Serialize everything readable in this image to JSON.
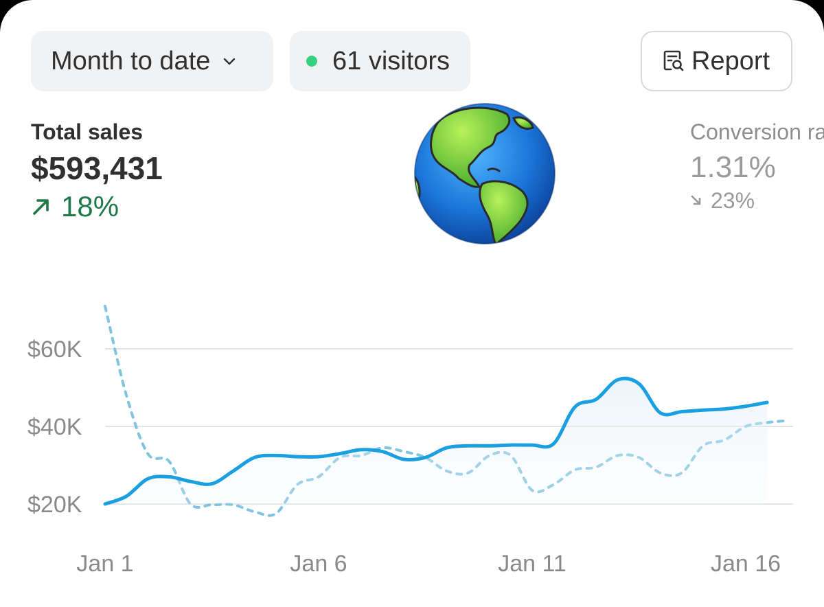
{
  "toolbar": {
    "range_label": "Month to date",
    "visitors_label": "61 visitors",
    "report_label": "Report"
  },
  "icons": {
    "range_dropdown": "chevron-down-icon",
    "live_dot": "live-dot-icon",
    "report": "report-search-icon",
    "up_arrow": "arrow-up-right-icon",
    "down_arrow": "arrow-down-right-icon"
  },
  "colors": {
    "positive": "#1f7a4a",
    "live_dot": "#36d27f",
    "current_series": "#1aa0e0",
    "previous_series": "#7fc4e0"
  },
  "metrics": {
    "total_sales": {
      "label": "Total sales",
      "value": "$593,431",
      "delta": "18%",
      "direction": "up"
    },
    "conversion": {
      "label": "Conversion rate",
      "value": "1.31%",
      "delta": "23%",
      "direction": "down"
    }
  },
  "chart_data": {
    "type": "line",
    "x_ticks": [
      "Jan 1",
      "Jan 6",
      "Jan 11",
      "Jan 16"
    ],
    "y_ticks": [
      "$20K",
      "$40K",
      "$60K"
    ],
    "ylim": [
      16000,
      72000
    ],
    "xlim": [
      1,
      17
    ],
    "grid": true,
    "series": [
      {
        "style": "solid",
        "area": true,
        "x": [
          1,
          1.5,
          2,
          2.5,
          3,
          3.5,
          4,
          4.5,
          5,
          5.5,
          6,
          6.5,
          7,
          7.5,
          8,
          8.5,
          9,
          9.5,
          10,
          10.5,
          11,
          11.5,
          12,
          12.5,
          13,
          13.5,
          14,
          14.5,
          15,
          15.5,
          16,
          16.5
        ],
        "values": [
          20000,
          22000,
          26500,
          27000,
          25800,
          25200,
          28500,
          32000,
          32500,
          32200,
          32200,
          33000,
          34000,
          33500,
          31500,
          32000,
          34500,
          35000,
          35000,
          35200,
          35200,
          35500,
          45000,
          47000,
          52000,
          51000,
          43500,
          43800,
          44200,
          44500,
          45200,
          46200
        ]
      },
      {
        "style": "dashed",
        "area": false,
        "x": [
          1,
          1.5,
          2,
          2.5,
          3,
          3.5,
          4,
          4.5,
          5,
          5.5,
          6,
          6.5,
          7,
          7.5,
          8,
          8.5,
          9,
          9.5,
          10,
          10.5,
          11,
          11.5,
          12,
          12.5,
          13,
          13.5,
          14,
          14.5,
          15,
          15.5,
          16,
          16.5,
          17
        ],
        "values": [
          71000,
          48000,
          33000,
          31000,
          20000,
          19800,
          19800,
          18000,
          17500,
          25000,
          27000,
          32000,
          32500,
          34500,
          33500,
          32000,
          28500,
          28000,
          32500,
          32500,
          23500,
          25000,
          28800,
          29500,
          32500,
          32000,
          28000,
          28000,
          35000,
          36500,
          40000,
          41000,
          41500
        ]
      }
    ]
  }
}
